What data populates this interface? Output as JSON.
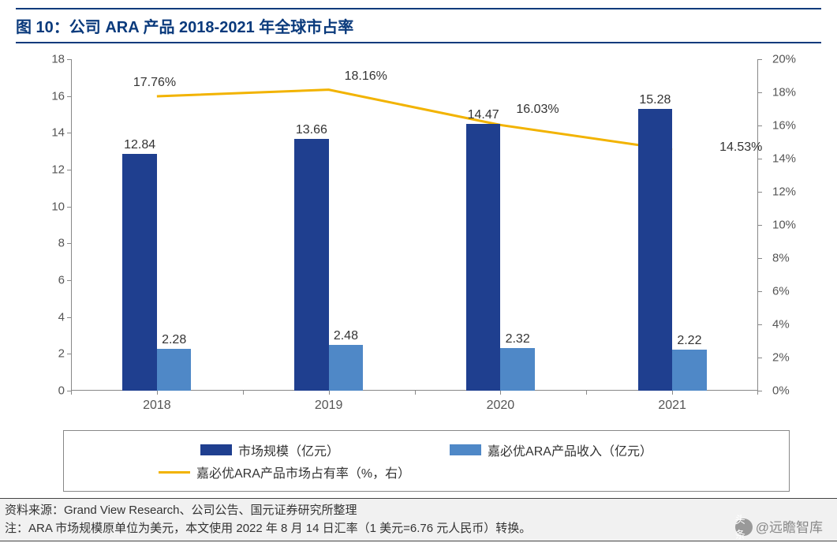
{
  "title": "图 10：公司 ARA 产品 2018-2021 年全球市占率",
  "chart": {
    "type": "bar+line",
    "background_color": "#ffffff",
    "title_color": "#0a3a7c",
    "title_border_color": "#0a3a7c",
    "axis_color": "#888888",
    "text_color": "#333333",
    "label_fontsize": 16,
    "tick_fontsize": 15,
    "categories": [
      "2018",
      "2019",
      "2020",
      "2021"
    ],
    "left_axis": {
      "min": 0,
      "max": 18,
      "step": 2
    },
    "right_axis": {
      "min": 0,
      "max": 0.2,
      "step": 0.02,
      "format": "percent"
    },
    "bar_group_width_pct": 20,
    "series": [
      {
        "name": "市场规模（亿元）",
        "type": "bar",
        "axis": "left",
        "color": "#1f3f8f",
        "values": [
          12.84,
          13.66,
          14.47,
          15.28
        ],
        "labels": [
          "12.84",
          "13.66",
          "14.47",
          "15.28"
        ]
      },
      {
        "name": "嘉必优ARA产品收入（亿元）",
        "type": "bar",
        "axis": "left",
        "color": "#4f88c7",
        "values": [
          2.28,
          2.48,
          2.32,
          2.22
        ],
        "labels": [
          "2.28",
          "2.48",
          "2.32",
          "2.22"
        ]
      },
      {
        "name": "嘉必优ARA产品市场占有率（%，右）",
        "type": "line",
        "axis": "right",
        "color": "#f2b300",
        "line_width": 3,
        "values": [
          0.1776,
          0.1816,
          0.1603,
          0.1453
        ],
        "labels": [
          "17.76%",
          "18.16%",
          "16.03%",
          "14.53%"
        ],
        "label_offsets": [
          {
            "dx": -30,
            "dy": -26
          },
          {
            "dx": 20,
            "dy": -26
          },
          {
            "dx": 20,
            "dy": -28
          },
          {
            "dx": 60,
            "dy": -12
          }
        ]
      }
    ]
  },
  "footnote1": "资料来源：Grand View Research、公司公告、国元证券研究所整理",
  "footnote2": "注：ARA 市场规模原单位为美元，本文使用 2022 年 8 月 14 日汇率（1 美元=6.76 元人民币）转换。",
  "watermark_prefix": "头条",
  "watermark_text": "@远瞻智库"
}
